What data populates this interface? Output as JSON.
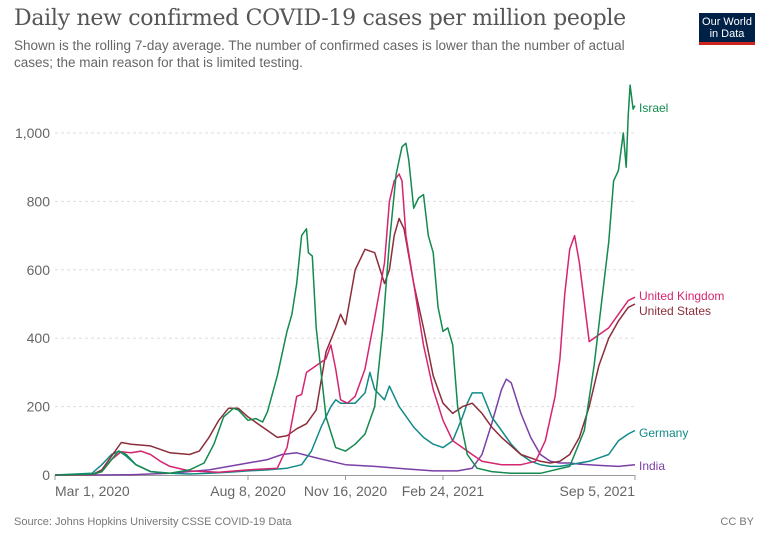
{
  "header": {
    "title": "Daily new confirmed COVID-19 cases per million people",
    "subtitle": "Shown is the rolling 7-day average. The number of confirmed cases is lower than the number of actual cases; the main reason for that is limited testing.",
    "logo_line1": "Our World",
    "logo_line2": "in Data"
  },
  "footer": {
    "source": "Source: Johns Hopkins University CSSE COVID-19 Data",
    "license": "CC BY"
  },
  "colors": {
    "Israel": "#138a4f",
    "United Kingdom": "#d6256f",
    "United States": "#8c2d3a",
    "Germany": "#128a8a",
    "India": "#7b3fa6",
    "grid": "#dddddd",
    "axis": "#999999"
  },
  "chart_data": {
    "type": "line",
    "title": "Daily new confirmed COVID-19 cases per million people",
    "subtitle": "Shown is the rolling 7-day average.",
    "xlabel": "",
    "ylabel": "",
    "x_unit": "days since Mar 1, 2020",
    "xlim": [
      -38,
      557
    ],
    "ylim": [
      0,
      1150
    ],
    "y_ticks": [
      0,
      200,
      400,
      600,
      800,
      1000
    ],
    "y_tick_labels": [
      "0",
      "200",
      "400",
      "600",
      "800",
      "1,000"
    ],
    "x_ticks": [
      0,
      160,
      260,
      360,
      553
    ],
    "x_tick_labels": [
      "Mar 1, 2020",
      "Aug 8, 2020",
      "Nov 16, 2020",
      "Feb 24, 2021",
      "Sep 5, 2021"
    ],
    "grid": true,
    "legend": "end-of-line labels (right)",
    "series": [
      {
        "name": "Israel",
        "x": [
          -38,
          0,
          10,
          20,
          27,
          35,
          45,
          60,
          80,
          100,
          115,
          125,
          135,
          145,
          150,
          160,
          168,
          175,
          180,
          190,
          200,
          205,
          210,
          215,
          220,
          222,
          226,
          230,
          240,
          250,
          260,
          270,
          280,
          290,
          298,
          305,
          312,
          318,
          322,
          325,
          330,
          335,
          340,
          345,
          350,
          355,
          360,
          365,
          370,
          375,
          385,
          395,
          410,
          430,
          460,
          490,
          505,
          515,
          525,
          530,
          535,
          540,
          545,
          548,
          550,
          552,
          555,
          557
        ],
        "y": [
          0,
          2,
          10,
          45,
          70,
          60,
          30,
          10,
          5,
          15,
          35,
          90,
          170,
          195,
          190,
          160,
          165,
          155,
          185,
          290,
          420,
          470,
          560,
          700,
          720,
          650,
          640,
          430,
          170,
          80,
          70,
          90,
          120,
          200,
          420,
          680,
          880,
          960,
          970,
          920,
          780,
          810,
          820,
          700,
          650,
          490,
          420,
          430,
          380,
          200,
          60,
          20,
          10,
          5,
          5,
          25,
          130,
          320,
          560,
          680,
          860,
          890,
          1000,
          900,
          1050,
          1140,
          1070,
          1080
        ]
      },
      {
        "name": "United Kingdom",
        "x": [
          -38,
          0,
          10,
          20,
          30,
          40,
          50,
          60,
          70,
          80,
          100,
          130,
          160,
          190,
          200,
          210,
          215,
          220,
          230,
          240,
          245,
          250,
          255,
          262,
          270,
          280,
          290,
          300,
          305,
          310,
          315,
          318,
          322,
          330,
          340,
          350,
          360,
          370,
          380,
          390,
          400,
          420,
          440,
          455,
          465,
          475,
          480,
          485,
          490,
          495,
          500,
          510,
          520,
          530,
          540,
          550,
          557
        ],
        "y": [
          0,
          1,
          10,
          45,
          68,
          65,
          70,
          60,
          40,
          25,
          12,
          8,
          15,
          20,
          80,
          230,
          235,
          300,
          320,
          340,
          380,
          310,
          220,
          210,
          230,
          310,
          460,
          620,
          800,
          860,
          880,
          860,
          700,
          560,
          380,
          250,
          160,
          100,
          80,
          60,
          40,
          30,
          30,
          40,
          100,
          230,
          340,
          530,
          660,
          700,
          620,
          390,
          410,
          430,
          470,
          510,
          520
        ]
      },
      {
        "name": "United States",
        "x": [
          -38,
          0,
          10,
          20,
          30,
          40,
          60,
          80,
          100,
          110,
          120,
          130,
          140,
          150,
          160,
          170,
          180,
          190,
          200,
          210,
          220,
          230,
          240,
          250,
          255,
          260,
          270,
          280,
          290,
          300,
          305,
          310,
          315,
          320,
          330,
          340,
          350,
          360,
          370,
          380,
          390,
          400,
          410,
          420,
          440,
          460,
          470,
          480,
          490,
          500,
          510,
          520,
          530,
          540,
          550,
          557
        ],
        "y": [
          0,
          1,
          15,
          55,
          95,
          90,
          85,
          65,
          60,
          70,
          110,
          160,
          195,
          195,
          170,
          150,
          130,
          110,
          115,
          135,
          150,
          190,
          360,
          430,
          470,
          440,
          600,
          660,
          650,
          560,
          600,
          700,
          750,
          720,
          560,
          430,
          290,
          210,
          180,
          200,
          210,
          180,
          140,
          110,
          60,
          40,
          35,
          40,
          60,
          110,
          200,
          320,
          400,
          450,
          490,
          500
        ]
      },
      {
        "name": "Germany",
        "x": [
          -38,
          0,
          10,
          20,
          28,
          35,
          45,
          60,
          80,
          100,
          120,
          140,
          160,
          180,
          200,
          215,
          225,
          235,
          245,
          250,
          255,
          260,
          270,
          280,
          285,
          290,
          300,
          305,
          310,
          315,
          320,
          330,
          340,
          350,
          360,
          370,
          380,
          385,
          390,
          395,
          400,
          410,
          420,
          430,
          440,
          450,
          460,
          470,
          480,
          490,
          500,
          510,
          520,
          530,
          535,
          540,
          545,
          550,
          557
        ],
        "y": [
          0,
          5,
          30,
          60,
          70,
          55,
          30,
          10,
          5,
          3,
          5,
          8,
          12,
          15,
          20,
          30,
          70,
          140,
          200,
          220,
          210,
          210,
          210,
          240,
          300,
          250,
          220,
          260,
          230,
          200,
          180,
          140,
          110,
          90,
          80,
          100,
          170,
          210,
          240,
          240,
          240,
          170,
          130,
          90,
          60,
          40,
          30,
          25,
          25,
          30,
          35,
          40,
          50,
          60,
          80,
          100,
          110,
          120,
          130
        ]
      },
      {
        "name": "India",
        "x": [
          -38,
          0,
          40,
          80,
          120,
          160,
          180,
          195,
          210,
          230,
          260,
          290,
          320,
          350,
          375,
          390,
          400,
          410,
          420,
          425,
          430,
          440,
          450,
          460,
          470,
          480,
          490,
          500,
          520,
          540,
          557
        ],
        "y": [
          0,
          0,
          1,
          5,
          15,
          35,
          45,
          60,
          65,
          50,
          30,
          25,
          18,
          12,
          12,
          20,
          60,
          150,
          250,
          280,
          270,
          180,
          110,
          60,
          40,
          35,
          35,
          32,
          28,
          25,
          30
        ]
      }
    ]
  }
}
